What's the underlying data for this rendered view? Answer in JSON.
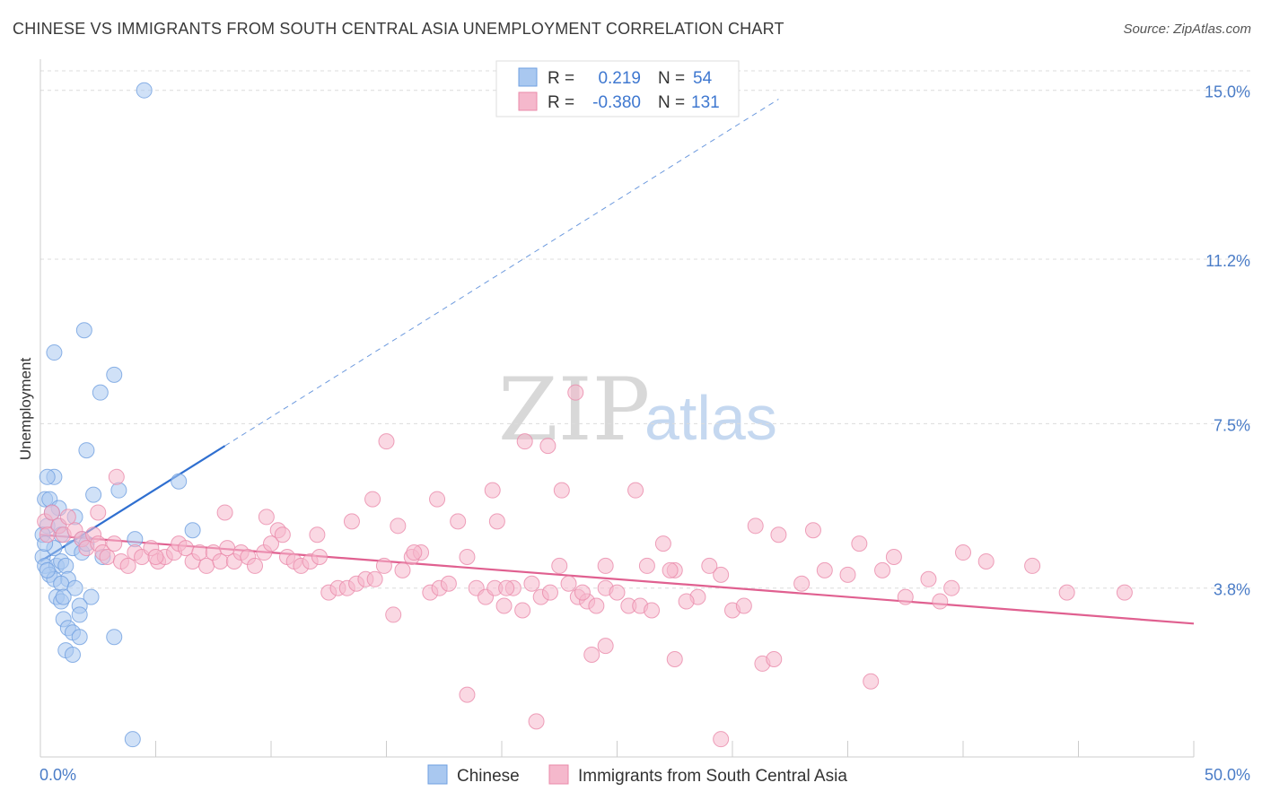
{
  "header": {
    "title": "CHINESE VS IMMIGRANTS FROM SOUTH CENTRAL ASIA UNEMPLOYMENT CORRELATION CHART",
    "source": "Source: ZipAtlas.com"
  },
  "watermark": {
    "zip": "ZIP",
    "atlas": "atlas"
  },
  "legend": {
    "rows": [
      {
        "r_label": "R =",
        "r_value": "0.219",
        "n_label": "N =",
        "n_value": "54",
        "color": "#a9c8f0"
      },
      {
        "r_label": "R =",
        "r_value": "-0.380",
        "n_label": "N =",
        "n_value": "131",
        "color": "#f5b8cc"
      }
    ]
  },
  "bottom_legend": [
    {
      "label": "Chinese",
      "color": "#a9c8f0"
    },
    {
      "label": "Immigrants from South Central Asia",
      "color": "#f5b8cc"
    }
  ],
  "chart_data": {
    "type": "scatter",
    "title": "CHINESE VS IMMIGRANTS FROM SOUTH CENTRAL ASIA UNEMPLOYMENT CORRELATION CHART",
    "xlabel": "",
    "ylabel": "Unemployment",
    "xlim": [
      0,
      50
    ],
    "ylim": [
      0,
      15.7
    ],
    "x_tick_labels": {
      "left": "0.0%",
      "right": "50.0%"
    },
    "y_ticks": [
      {
        "value": 3.8,
        "label": "3.8%"
      },
      {
        "value": 7.5,
        "label": "7.5%"
      },
      {
        "value": 11.2,
        "label": "11.2%"
      },
      {
        "value": 15.0,
        "label": "15.0%"
      }
    ],
    "series": [
      {
        "name": "Chinese",
        "color": "#a9c8f0",
        "stroke": "#6f9fe0",
        "trend": {
          "x0": 0,
          "y0": 4.4,
          "x1": 8,
          "y1": 7.0,
          "dash_to_x": 32,
          "color": "#2f6fd0"
        },
        "points": [
          [
            4.5,
            15.0
          ],
          [
            1.9,
            9.6
          ],
          [
            0.6,
            9.1
          ],
          [
            3.2,
            8.6
          ],
          [
            2.6,
            8.2
          ],
          [
            2.0,
            6.9
          ],
          [
            0.6,
            6.3
          ],
          [
            0.3,
            6.3
          ],
          [
            6.0,
            6.2
          ],
          [
            3.4,
            6.0
          ],
          [
            2.3,
            5.9
          ],
          [
            0.2,
            5.8
          ],
          [
            0.4,
            5.8
          ],
          [
            0.8,
            5.6
          ],
          [
            0.3,
            5.2
          ],
          [
            0.8,
            5.2
          ],
          [
            1.5,
            5.4
          ],
          [
            0.1,
            5.0
          ],
          [
            0.9,
            5.0
          ],
          [
            6.6,
            5.1
          ],
          [
            1.8,
            4.9
          ],
          [
            4.1,
            4.9
          ],
          [
            0.6,
            4.7
          ],
          [
            1.4,
            4.7
          ],
          [
            1.8,
            4.6
          ],
          [
            2.7,
            4.5
          ],
          [
            0.1,
            4.5
          ],
          [
            0.2,
            4.3
          ],
          [
            0.7,
            4.3
          ],
          [
            0.9,
            4.4
          ],
          [
            1.1,
            4.3
          ],
          [
            0.4,
            4.1
          ],
          [
            1.2,
            4.0
          ],
          [
            0.6,
            4.0
          ],
          [
            0.9,
            3.9
          ],
          [
            1.5,
            3.8
          ],
          [
            0.7,
            3.6
          ],
          [
            0.9,
            3.5
          ],
          [
            2.2,
            3.6
          ],
          [
            1.7,
            3.4
          ],
          [
            1.7,
            3.2
          ],
          [
            1.0,
            3.1
          ],
          [
            1.2,
            2.9
          ],
          [
            1.4,
            2.8
          ],
          [
            1.7,
            2.7
          ],
          [
            3.2,
            2.7
          ],
          [
            1.1,
            2.4
          ],
          [
            1.4,
            2.3
          ],
          [
            4.0,
            0.4
          ],
          [
            0.2,
            4.8
          ],
          [
            1.0,
            3.6
          ],
          [
            0.3,
            4.2
          ],
          [
            2.0,
            4.8
          ],
          [
            0.5,
            5.5
          ]
        ]
      },
      {
        "name": "Immigrants from South Central Asia",
        "color": "#f5b8cc",
        "stroke": "#ea8aaa",
        "trend": {
          "x0": 0,
          "y0": 5.0,
          "x1": 50,
          "y1": 3.0,
          "color": "#e06090"
        },
        "points": [
          [
            0.2,
            5.3
          ],
          [
            0.5,
            5.5
          ],
          [
            0.8,
            5.2
          ],
          [
            1.0,
            5.0
          ],
          [
            1.2,
            5.4
          ],
          [
            1.5,
            5.1
          ],
          [
            0.3,
            5.0
          ],
          [
            1.8,
            4.9
          ],
          [
            2.0,
            4.7
          ],
          [
            2.3,
            5.0
          ],
          [
            2.5,
            4.8
          ],
          [
            2.7,
            4.6
          ],
          [
            2.9,
            4.5
          ],
          [
            3.2,
            4.8
          ],
          [
            3.5,
            4.4
          ],
          [
            3.8,
            4.3
          ],
          [
            4.1,
            4.6
          ],
          [
            4.4,
            4.5
          ],
          [
            4.8,
            4.7
          ],
          [
            5.1,
            4.4
          ],
          [
            5.4,
            4.5
          ],
          [
            5.8,
            4.6
          ],
          [
            6.0,
            4.8
          ],
          [
            6.3,
            4.7
          ],
          [
            6.6,
            4.4
          ],
          [
            6.9,
            4.6
          ],
          [
            7.2,
            4.3
          ],
          [
            7.5,
            4.6
          ],
          [
            7.8,
            4.4
          ],
          [
            8.1,
            4.7
          ],
          [
            8.4,
            4.4
          ],
          [
            8.7,
            4.6
          ],
          [
            9.0,
            4.5
          ],
          [
            9.3,
            4.3
          ],
          [
            9.7,
            4.6
          ],
          [
            10.0,
            4.8
          ],
          [
            10.3,
            5.1
          ],
          [
            10.7,
            4.5
          ],
          [
            11.0,
            4.4
          ],
          [
            11.3,
            4.3
          ],
          [
            11.7,
            4.4
          ],
          [
            12.1,
            4.5
          ],
          [
            12.5,
            3.7
          ],
          [
            12.9,
            3.8
          ],
          [
            13.3,
            3.8
          ],
          [
            13.7,
            3.9
          ],
          [
            14.1,
            4.0
          ],
          [
            14.5,
            4.0
          ],
          [
            14.9,
            4.3
          ],
          [
            15.3,
            3.2
          ],
          [
            15.7,
            4.2
          ],
          [
            16.1,
            4.5
          ],
          [
            16.5,
            4.6
          ],
          [
            16.9,
            3.7
          ],
          [
            17.3,
            3.8
          ],
          [
            17.7,
            3.9
          ],
          [
            18.1,
            5.3
          ],
          [
            18.5,
            4.5
          ],
          [
            18.9,
            3.8
          ],
          [
            19.3,
            3.6
          ],
          [
            19.7,
            3.8
          ],
          [
            20.1,
            3.4
          ],
          [
            20.5,
            3.8
          ],
          [
            20.9,
            3.3
          ],
          [
            21.3,
            3.9
          ],
          [
            21.7,
            3.6
          ],
          [
            22.1,
            3.7
          ],
          [
            22.5,
            4.3
          ],
          [
            22.9,
            3.9
          ],
          [
            23.3,
            3.6
          ],
          [
            23.7,
            3.5
          ],
          [
            24.1,
            3.4
          ],
          [
            24.5,
            3.8
          ],
          [
            25.0,
            3.7
          ],
          [
            25.5,
            3.4
          ],
          [
            26.0,
            3.4
          ],
          [
            26.5,
            3.3
          ],
          [
            27.0,
            4.8
          ],
          [
            27.5,
            4.2
          ],
          [
            28.5,
            3.6
          ],
          [
            29.5,
            4.1
          ],
          [
            30.0,
            3.3
          ],
          [
            30.5,
            3.4
          ],
          [
            33.0,
            3.9
          ],
          [
            34.0,
            4.2
          ],
          [
            35.5,
            4.8
          ],
          [
            37.5,
            3.6
          ],
          [
            37.0,
            4.5
          ],
          [
            39.0,
            3.5
          ],
          [
            40.0,
            4.6
          ],
          [
            41.0,
            4.4
          ],
          [
            43.0,
            4.3
          ],
          [
            44.5,
            3.7
          ],
          [
            47.0,
            3.7
          ],
          [
            12.0,
            5.0
          ],
          [
            14.4,
            5.8
          ],
          [
            15.5,
            5.2
          ],
          [
            17.2,
            5.8
          ],
          [
            19.6,
            6.0
          ],
          [
            22.6,
            6.0
          ],
          [
            23.5,
            3.7
          ],
          [
            24.5,
            4.3
          ],
          [
            26.3,
            4.3
          ],
          [
            27.3,
            4.2
          ],
          [
            28.0,
            3.5
          ],
          [
            29.0,
            4.3
          ],
          [
            31.0,
            5.2
          ],
          [
            32.0,
            5.0
          ],
          [
            33.5,
            5.1
          ],
          [
            35.0,
            4.1
          ],
          [
            36.5,
            4.2
          ],
          [
            38.5,
            4.0
          ],
          [
            39.5,
            3.8
          ],
          [
            20.2,
            3.8
          ],
          [
            19.8,
            5.3
          ],
          [
            21.0,
            7.1
          ],
          [
            22.0,
            7.0
          ],
          [
            23.2,
            8.2
          ],
          [
            25.8,
            6.0
          ],
          [
            15.0,
            7.1
          ],
          [
            10.5,
            5.0
          ],
          [
            8.0,
            5.5
          ],
          [
            9.8,
            5.4
          ],
          [
            13.5,
            5.3
          ],
          [
            16.2,
            4.6
          ],
          [
            3.3,
            6.3
          ],
          [
            2.5,
            5.5
          ],
          [
            5.0,
            4.5
          ],
          [
            18.5,
            1.4
          ],
          [
            21.5,
            0.8
          ],
          [
            29.5,
            0.4
          ],
          [
            24.5,
            2.5
          ],
          [
            23.9,
            2.3
          ],
          [
            27.5,
            2.2
          ],
          [
            31.3,
            2.1
          ],
          [
            31.8,
            2.2
          ],
          [
            36.0,
            1.7
          ]
        ]
      }
    ]
  }
}
